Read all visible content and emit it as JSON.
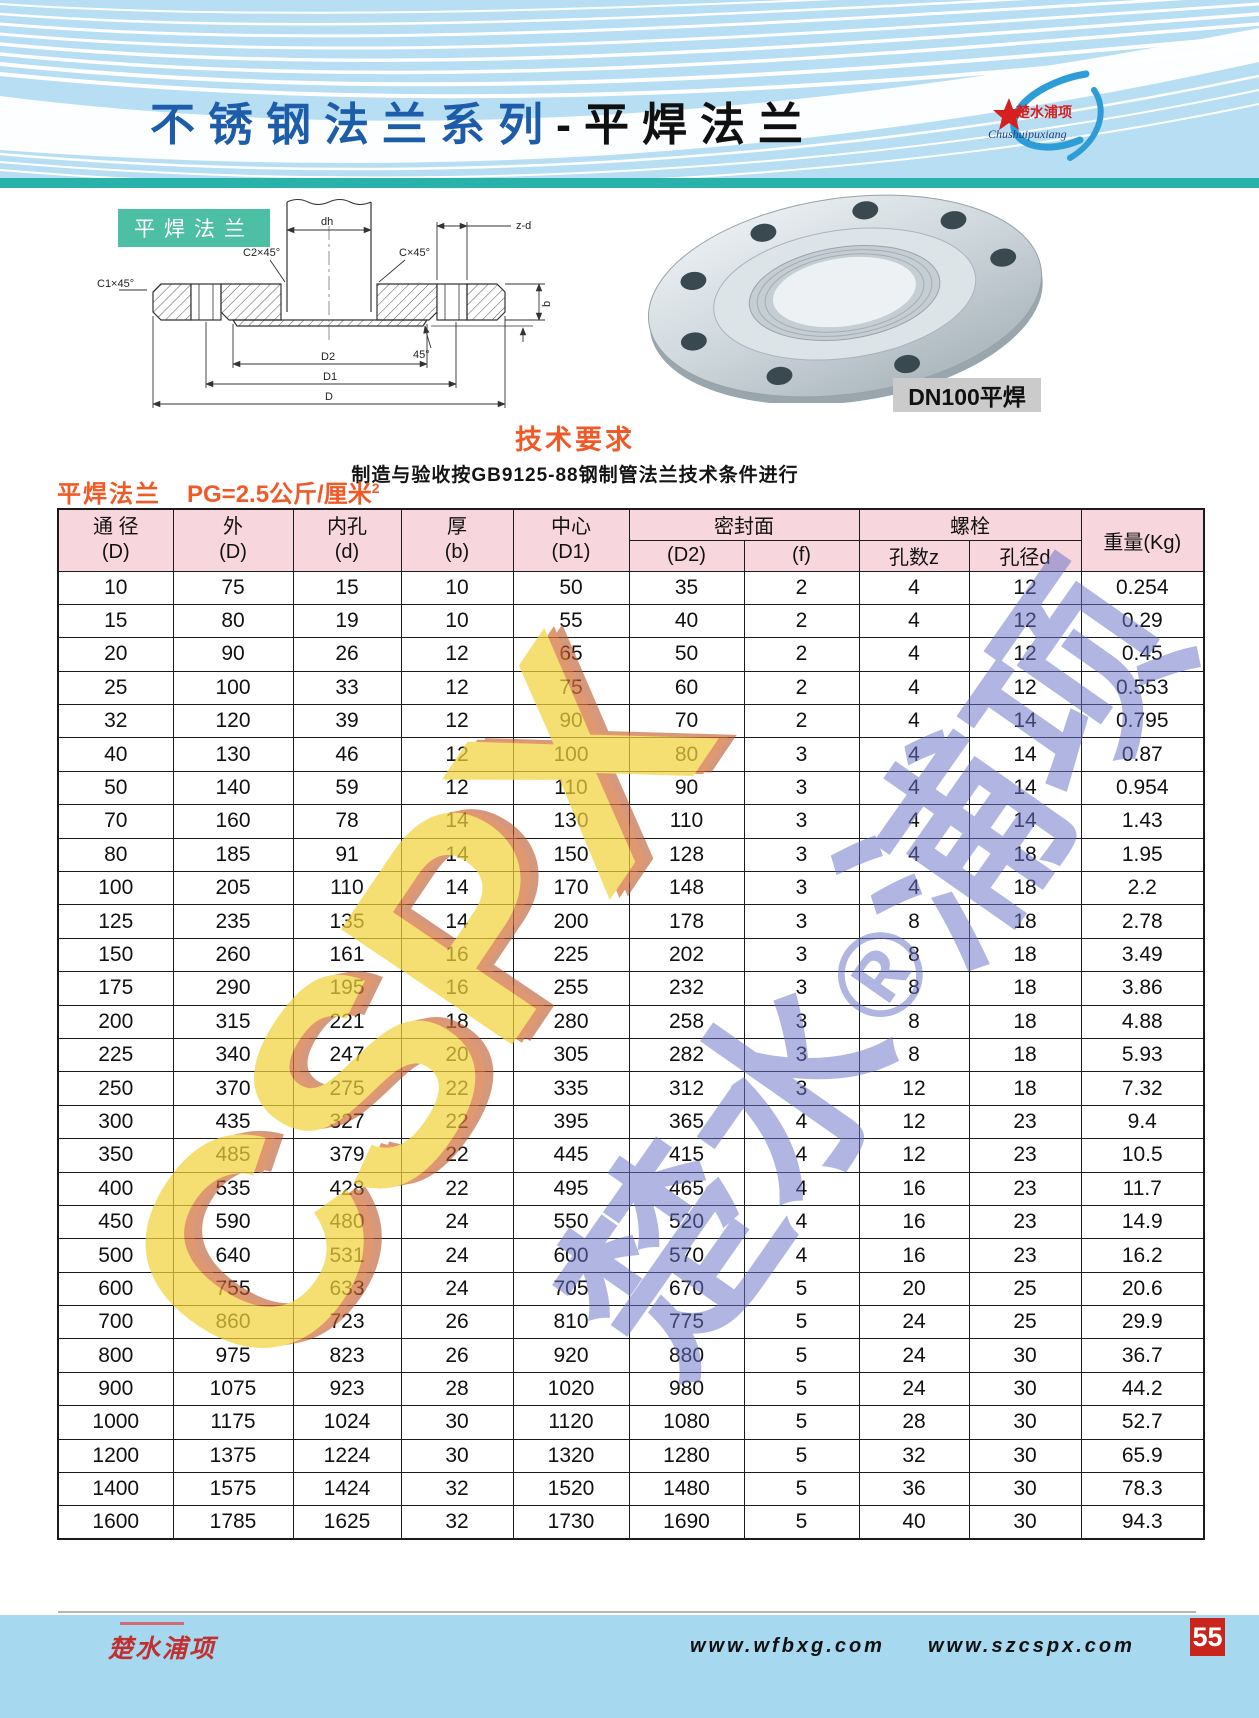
{
  "header": {
    "title_part1": "不锈钢法兰系列",
    "title_dash": "-",
    "title_part2": "平焊法兰",
    "logo_cn": "楚水浦项",
    "logo_script": "Chushuipuxiang"
  },
  "diagram": {
    "tag": "平焊法兰",
    "labels": {
      "dh": "dh",
      "zd": "z-d",
      "c2": "C2×45°",
      "c": "C×45°",
      "c1": "C1×45°",
      "a45": "45°",
      "d2": "D2",
      "d1": "D1",
      "d": "D",
      "b": "b"
    }
  },
  "photo": {
    "caption": "DN100平焊"
  },
  "tech_req": {
    "title": "技术要求",
    "body": "制造与验收按GB9125-88钢制管法兰技术条件进行"
  },
  "table_caption": {
    "name": "平焊法兰",
    "pressure": "PG=2.5公斤/厘米",
    "sup": "2"
  },
  "table": {
    "head": {
      "col_dn_1": "通 径",
      "col_dn_2": "(D)",
      "col_od_1": "外",
      "col_od_2": "(D)",
      "col_id_1": "内孔",
      "col_id_2": "(d)",
      "col_b_1": "厚",
      "col_b_2": "(b)",
      "col_d1_1": "中心",
      "col_d1_2": "(D1)",
      "grp_seal": "密封面",
      "col_d2": "(D2)",
      "col_f": "(f)",
      "grp_bolt": "螺栓",
      "col_z": "孔数z",
      "col_dd": "孔径d",
      "col_w": "重量(Kg)"
    },
    "rows": [
      [
        "10",
        "75",
        "15",
        "10",
        "50",
        "35",
        "2",
        "4",
        "12",
        "0.254"
      ],
      [
        "15",
        "80",
        "19",
        "10",
        "55",
        "40",
        "2",
        "4",
        "12",
        "0.29"
      ],
      [
        "20",
        "90",
        "26",
        "12",
        "65",
        "50",
        "2",
        "4",
        "12",
        "0.45"
      ],
      [
        "25",
        "100",
        "33",
        "12",
        "75",
        "60",
        "2",
        "4",
        "12",
        "0.553"
      ],
      [
        "32",
        "120",
        "39",
        "12",
        "90",
        "70",
        "2",
        "4",
        "14",
        "0.795"
      ],
      [
        "40",
        "130",
        "46",
        "12",
        "100",
        "80",
        "3",
        "4",
        "14",
        "0.87"
      ],
      [
        "50",
        "140",
        "59",
        "12",
        "110",
        "90",
        "3",
        "4",
        "14",
        "0.954"
      ],
      [
        "70",
        "160",
        "78",
        "14",
        "130",
        "110",
        "3",
        "4",
        "14",
        "1.43"
      ],
      [
        "80",
        "185",
        "91",
        "14",
        "150",
        "128",
        "3",
        "4",
        "18",
        "1.95"
      ],
      [
        "100",
        "205",
        "110",
        "14",
        "170",
        "148",
        "3",
        "4",
        "18",
        "2.2"
      ],
      [
        "125",
        "235",
        "135",
        "14",
        "200",
        "178",
        "3",
        "8",
        "18",
        "2.78"
      ],
      [
        "150",
        "260",
        "161",
        "16",
        "225",
        "202",
        "3",
        "8",
        "18",
        "3.49"
      ],
      [
        "175",
        "290",
        "195",
        "16",
        "255",
        "232",
        "3",
        "8",
        "18",
        "3.86"
      ],
      [
        "200",
        "315",
        "221",
        "18",
        "280",
        "258",
        "3",
        "8",
        "18",
        "4.88"
      ],
      [
        "225",
        "340",
        "247",
        "20",
        "305",
        "282",
        "3",
        "8",
        "18",
        "5.93"
      ],
      [
        "250",
        "370",
        "275",
        "22",
        "335",
        "312",
        "3",
        "12",
        "18",
        "7.32"
      ],
      [
        "300",
        "435",
        "327",
        "22",
        "395",
        "365",
        "4",
        "12",
        "23",
        "9.4"
      ],
      [
        "350",
        "485",
        "379",
        "22",
        "445",
        "415",
        "4",
        "12",
        "23",
        "10.5"
      ],
      [
        "400",
        "535",
        "428",
        "22",
        "495",
        "465",
        "4",
        "16",
        "23",
        "11.7"
      ],
      [
        "450",
        "590",
        "480",
        "24",
        "550",
        "520",
        "4",
        "16",
        "23",
        "14.9"
      ],
      [
        "500",
        "640",
        "531",
        "24",
        "600",
        "570",
        "4",
        "16",
        "23",
        "16.2"
      ],
      [
        "600",
        "755",
        "633",
        "24",
        "705",
        "670",
        "5",
        "20",
        "25",
        "20.6"
      ],
      [
        "700",
        "860",
        "723",
        "26",
        "810",
        "775",
        "5",
        "24",
        "25",
        "29.9"
      ],
      [
        "800",
        "975",
        "823",
        "26",
        "920",
        "880",
        "5",
        "24",
        "30",
        "36.7"
      ],
      [
        "900",
        "1075",
        "923",
        "28",
        "1020",
        "980",
        "5",
        "24",
        "30",
        "44.2"
      ],
      [
        "1000",
        "1175",
        "1024",
        "30",
        "1120",
        "1080",
        "5",
        "28",
        "30",
        "52.7"
      ],
      [
        "1200",
        "1375",
        "1224",
        "30",
        "1320",
        "1280",
        "5",
        "32",
        "30",
        "65.9"
      ],
      [
        "1400",
        "1575",
        "1424",
        "32",
        "1520",
        "1480",
        "5",
        "36",
        "30",
        "78.3"
      ],
      [
        "1600",
        "1785",
        "1625",
        "32",
        "1730",
        "1690",
        "5",
        "40",
        "30",
        "94.3"
      ]
    ]
  },
  "watermark": {
    "latin": "CSPX",
    "cjk_left": "楚水",
    "reg": "®",
    "cjk_right": "浦项"
  },
  "footer": {
    "brand": "楚水浦项",
    "site1": "www.wfbxg.com",
    "site2": "www.szcspx.com",
    "page": "55"
  },
  "colors": {
    "title_blue": "#1c5ca8",
    "accent_red": "#f05a28",
    "teal_band": "#29b2aa",
    "tag_teal": "#4dbfa4",
    "table_head_pink": "#f8d6de",
    "footer_blue": "#a6d8ef",
    "page_num_red": "#c9251d",
    "watermark_yellow": "#f2d33c",
    "watermark_orange": "#d4703a",
    "watermark_purple": "#6872c6",
    "banner_blue": "#b7def2"
  }
}
